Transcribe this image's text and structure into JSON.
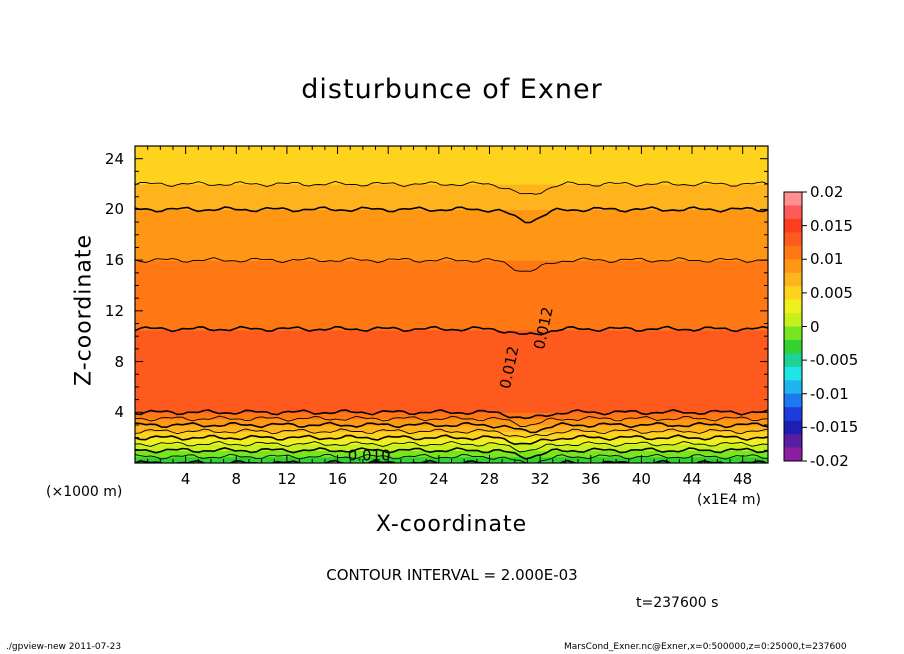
{
  "chart_data": {
    "type": "heatmap",
    "title": "disturbunce of Exner",
    "xlabel": "X-coordinate",
    "ylabel": "Z-coordinate",
    "x_unit_label": "(×1000 m)",
    "x_scale_label": "(x1E4 m)",
    "xlim": [
      0,
      50
    ],
    "ylim": [
      0,
      25
    ],
    "x_ticks": [
      "4",
      "8",
      "12",
      "16",
      "20",
      "24",
      "28",
      "32",
      "36",
      "40",
      "44",
      "48"
    ],
    "y_ticks": [
      "4",
      "8",
      "12",
      "16",
      "20",
      "24"
    ],
    "colorbar": {
      "range": [
        -0.02,
        0.02
      ],
      "labels": [
        "0.02",
        "0.015",
        "0.01",
        "0.005",
        "0",
        "-0.005",
        "-0.01",
        "-0.015",
        "-0.02"
      ],
      "colors": [
        "#ff9090",
        "#ff5a5a",
        "#ff3c1e",
        "#ff5a1e",
        "#ff7814",
        "#ff9614",
        "#ffb41e",
        "#ffd21e",
        "#f0f01e",
        "#c8f01e",
        "#78e61e",
        "#32d232",
        "#1ed296",
        "#1ee6e6",
        "#1eb4f0",
        "#1e78f0",
        "#1e3cdc",
        "#1e1eb4",
        "#5a1ea0",
        "#8c1ea0"
      ]
    },
    "profile_z": [
      0,
      0.5,
      1,
      1.5,
      2,
      2.5,
      3,
      3.5,
      4,
      6,
      8,
      10,
      12,
      14,
      16,
      18,
      20,
      21,
      22,
      24,
      25
    ],
    "profile_value": [
      -0.004,
      -0.002,
      0.0,
      0.002,
      0.004,
      0.006,
      0.008,
      0.01,
      0.012,
      0.0135,
      0.013,
      0.0122,
      0.0115,
      0.0108,
      0.01,
      0.009,
      0.008,
      0.0072,
      0.006,
      0.0048,
      0.0045
    ],
    "contour_labels": [
      "0.012",
      "0.012",
      "0.010"
    ],
    "contour_interval_text": "CONTOUR INTERVAL = 2.000E-03",
    "time_text": "t=237600  s"
  },
  "footer": {
    "left": "./gpview-new   2011-07-23",
    "right": "MarsCond_Exner.nc@Exner,x=0:500000,z=0:25000,t=237600"
  }
}
